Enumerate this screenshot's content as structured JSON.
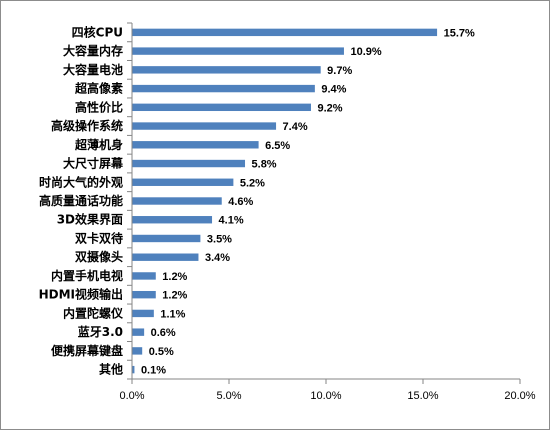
{
  "chart_data": {
    "type": "bar",
    "orientation": "horizontal",
    "title": "",
    "xlabel": "",
    "ylabel": "",
    "categories": [
      "四核CPU",
      "大容量内存",
      "大容量电池",
      "超高像素",
      "高性价比",
      "高级操作系统",
      "超薄机身",
      "大尺寸屏幕",
      "时尚大气的外观",
      "高质量通话功能",
      "3D效果界面",
      "双卡双待",
      "双摄像头",
      "内置手机电视",
      "HDMI视频输出",
      "内置陀螺仪",
      "蓝牙3.0",
      "便携屏幕键盘",
      "其他"
    ],
    "values": [
      15.7,
      10.9,
      9.7,
      9.4,
      9.2,
      7.4,
      6.5,
      5.8,
      5.2,
      4.6,
      4.1,
      3.5,
      3.4,
      1.2,
      1.2,
      1.1,
      0.6,
      0.5,
      0.1
    ],
    "value_labels": [
      "15.7%",
      "10.9%",
      "9.7%",
      "9.4%",
      "9.2%",
      "7.4%",
      "6.5%",
      "5.8%",
      "5.2%",
      "4.6%",
      "4.1%",
      "3.5%",
      "3.4%",
      "1.2%",
      "1.2%",
      "1.1%",
      "0.6%",
      "0.5%",
      "0.1%"
    ],
    "xlim": [
      0,
      20
    ],
    "xticks": [
      0,
      5,
      10,
      15,
      20
    ],
    "xtick_labels": [
      "0.0%",
      "5.0%",
      "10.0%",
      "15.0%",
      "20.0%"
    ],
    "grid": false,
    "legend": "none",
    "bar_color": "#4f81bd"
  }
}
